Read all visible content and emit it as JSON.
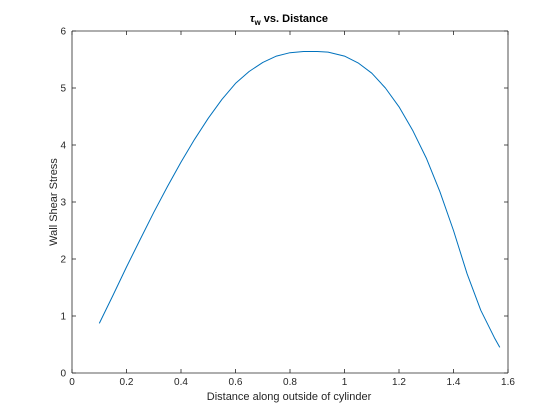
{
  "chart_data": {
    "type": "line",
    "title_symbol": "τ",
    "title_subscript": "w",
    "title_rest": " vs. Distance",
    "xlabel": "Distance along outside of cylinder",
    "ylabel": "Wall Shear Stress",
    "xlim": [
      0,
      1.6
    ],
    "ylim": [
      0,
      6
    ],
    "xticks": [
      0,
      0.2,
      0.4,
      0.6,
      0.8,
      1,
      1.2,
      1.4,
      1.6
    ],
    "xtick_labels": [
      "0",
      "0.2",
      "0.4",
      "0.6",
      "0.8",
      "1",
      "1.2",
      "1.4",
      "1.6"
    ],
    "yticks": [
      0,
      1,
      2,
      3,
      4,
      5,
      6
    ],
    "ytick_labels": [
      "0",
      "1",
      "2",
      "3",
      "4",
      "5",
      "6"
    ],
    "grid": false,
    "line_color": "#0072BD",
    "series": [
      {
        "x": [
          0.1,
          0.15,
          0.2,
          0.25,
          0.3,
          0.35,
          0.4,
          0.45,
          0.5,
          0.55,
          0.6,
          0.65,
          0.7,
          0.75,
          0.8,
          0.85,
          0.9,
          0.94,
          1.0,
          1.05,
          1.1,
          1.15,
          1.2,
          1.25,
          1.3,
          1.35,
          1.4,
          1.45,
          1.5,
          1.55,
          1.57
        ],
        "y": [
          0.87,
          1.36,
          1.86,
          2.34,
          2.82,
          3.27,
          3.7,
          4.1,
          4.47,
          4.8,
          5.08,
          5.29,
          5.45,
          5.56,
          5.62,
          5.64,
          5.64,
          5.63,
          5.56,
          5.44,
          5.26,
          5.0,
          4.67,
          4.26,
          3.77,
          3.18,
          2.5,
          1.74,
          1.1,
          0.62,
          0.45
        ]
      }
    ]
  }
}
